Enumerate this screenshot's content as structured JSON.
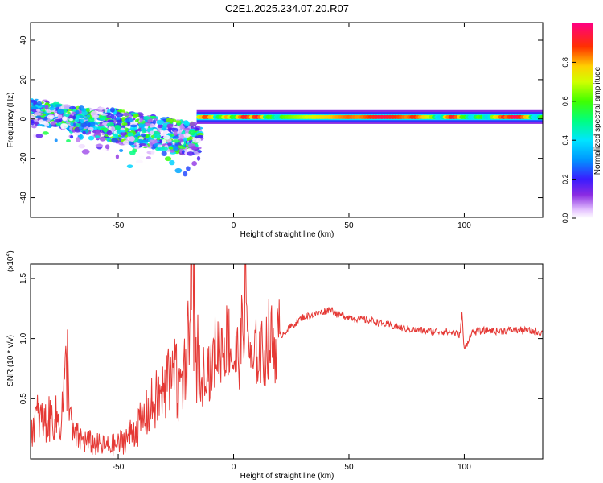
{
  "title": "C2E1.2025.234.07.20.R07",
  "colors": {
    "snr_line": "#e53935",
    "axis": "#000000"
  },
  "colorbar": {
    "label": "Normalized spectral amplitude",
    "ticks": [
      "0.0",
      "0.2",
      "0.4",
      "0.6",
      "0.8"
    ]
  },
  "chart_data": [
    {
      "type": "heatmap",
      "name": "spectrogram",
      "xlabel": "Height of straight line (km)",
      "ylabel": "Frequency (Hz)",
      "xlim": [
        -88,
        134
      ],
      "ylim": [
        -50,
        49
      ],
      "xticks": [
        "-50",
        "0",
        "50",
        "100"
      ],
      "xtick_values": [
        -50,
        0,
        50,
        100
      ],
      "yticks": [
        "40",
        "20",
        "0",
        "-20",
        "-40"
      ],
      "ytick_values": [
        40,
        20,
        0,
        -20,
        -40
      ],
      "zlim": [
        0,
        1
      ],
      "colormap": "rainbow (purple-blue-cyan-green-yellow-red-magenta)",
      "bands": [
        {
          "x_start": -88,
          "x_end": -15,
          "f_center": "≈ 4 Hz sloping down to ≈ -13 Hz",
          "amplitude": "0.1–0.6 scattered blobs",
          "note": "diffuse noisy region"
        },
        {
          "x_start": -15,
          "x_end": 134,
          "f_center": 1,
          "f_halfwidth": 3,
          "amplitude": "0.3–1.0",
          "note": "narrow band near 0–2 Hz, strongest (red) at x≈-12, 5, 10, 40–80, 95, 117–127"
        }
      ]
    },
    {
      "type": "line",
      "name": "snr",
      "xlabel": "Height of straight line (km)",
      "ylabel": "SNR (10 * v/v)",
      "multiplier_label": "(x10",
      "multiplier_exp": "4",
      "multiplier_close": ")",
      "xlim": [
        -88,
        134
      ],
      "ylim": [
        0.0,
        1.62
      ],
      "xticks": [
        "-50",
        "0",
        "50",
        "100"
      ],
      "xtick_values": [
        -50,
        0,
        50,
        100
      ],
      "yticks": [
        "1.5",
        "1.0",
        "0.5"
      ],
      "ytick_values": [
        1.5,
        1.0,
        0.5
      ],
      "series": [
        {
          "name": "SNR",
          "x": [
            -88,
            -85,
            -82,
            -78,
            -75,
            -72,
            -70,
            -65,
            -60,
            -55,
            -50,
            -45,
            -40,
            -35,
            -30,
            -25,
            -22,
            -20,
            -18,
            -16,
            -14,
            -12,
            -10,
            -8,
            -5,
            -2,
            0,
            3,
            5,
            8,
            10,
            13,
            15,
            18,
            20,
            25,
            30,
            35,
            40,
            42,
            45,
            50,
            55,
            60,
            65,
            70,
            75,
            80,
            85,
            90,
            95,
            98,
            99,
            100,
            103,
            110,
            115,
            120,
            125,
            130,
            134
          ],
          "y": [
            0.25,
            0.35,
            0.3,
            0.35,
            0.3,
            0.8,
            0.2,
            0.15,
            0.12,
            0.1,
            0.12,
            0.2,
            0.3,
            0.45,
            0.55,
            0.7,
            0.5,
            0.8,
            1.5,
            0.9,
            0.6,
            0.85,
            0.7,
            0.9,
            0.95,
            1.0,
            0.8,
            0.9,
            1.35,
            0.7,
            0.9,
            0.85,
            1.0,
            0.95,
            1.02,
            1.1,
            1.18,
            1.2,
            1.23,
            1.25,
            1.2,
            1.18,
            1.16,
            1.15,
            1.12,
            1.1,
            1.08,
            1.07,
            1.06,
            1.06,
            1.05,
            1.03,
            1.2,
            0.9,
            1.05,
            1.07,
            1.06,
            1.07,
            1.07,
            1.06,
            1.05
          ]
        }
      ]
    }
  ]
}
